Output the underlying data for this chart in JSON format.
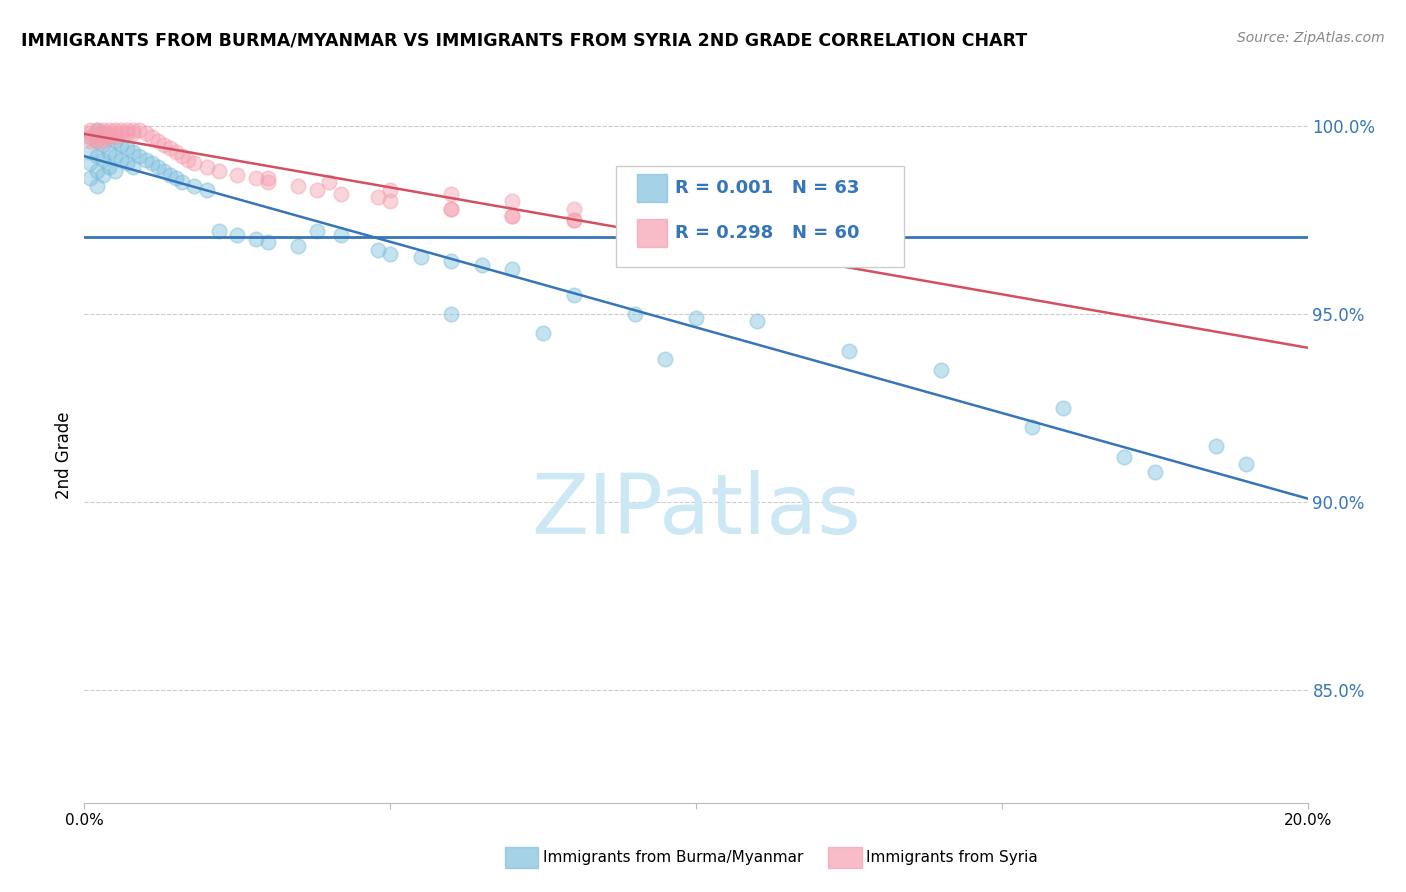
{
  "title": "IMMIGRANTS FROM BURMA/MYANMAR VS IMMIGRANTS FROM SYRIA 2ND GRADE CORRELATION CHART",
  "source": "Source: ZipAtlas.com",
  "ylabel": "2nd Grade",
  "xlim": [
    0.0,
    0.2
  ],
  "ylim": [
    0.82,
    1.005
  ],
  "yticks": [
    0.85,
    0.9,
    0.95,
    1.0
  ],
  "ytick_labels": [
    "85.0%",
    "90.0%",
    "95.0%",
    "100.0%"
  ],
  "blue_color": "#7fbfdd",
  "pink_color": "#f4a0b0",
  "trendline_blue_color": "#3575b8",
  "trendline_pink_color": "#d45060",
  "hline_color": "#3575b8",
  "legend_R_blue": "R = 0.001",
  "legend_N_blue": "N = 63",
  "legend_R_pink": "R = 0.298",
  "legend_N_pink": "N = 60",
  "legend_color": "#3575b8",
  "watermark": "ZIPatlas",
  "watermark_color": "#cde8f5",
  "grid_color": "#cccccc",
  "blue_x": [
    0.001,
    0.001,
    0.001,
    0.001,
    0.002,
    0.002,
    0.002,
    0.002,
    0.002,
    0.003,
    0.003,
    0.003,
    0.003,
    0.004,
    0.004,
    0.004,
    0.005,
    0.005,
    0.005,
    0.006,
    0.006,
    0.007,
    0.007,
    0.008,
    0.008,
    0.009,
    0.01,
    0.011,
    0.012,
    0.013,
    0.014,
    0.015,
    0.016,
    0.018,
    0.02,
    0.022,
    0.025,
    0.028,
    0.03,
    0.035,
    0.038,
    0.042,
    0.048,
    0.05,
    0.055,
    0.06,
    0.065,
    0.07,
    0.08,
    0.09,
    0.1,
    0.11,
    0.125,
    0.14,
    0.16,
    0.185,
    0.19,
    0.06,
    0.075,
    0.095,
    0.155,
    0.17,
    0.175
  ],
  "blue_y": [
    0.997,
    0.993,
    0.99,
    0.986,
    0.999,
    0.996,
    0.992,
    0.988,
    0.984,
    0.998,
    0.995,
    0.991,
    0.987,
    0.997,
    0.993,
    0.989,
    0.996,
    0.992,
    0.988,
    0.995,
    0.991,
    0.994,
    0.99,
    0.993,
    0.989,
    0.992,
    0.991,
    0.99,
    0.989,
    0.988,
    0.987,
    0.986,
    0.985,
    0.984,
    0.983,
    0.972,
    0.971,
    0.97,
    0.969,
    0.968,
    0.972,
    0.971,
    0.967,
    0.966,
    0.965,
    0.964,
    0.963,
    0.962,
    0.955,
    0.95,
    0.949,
    0.948,
    0.94,
    0.935,
    0.925,
    0.915,
    0.91,
    0.95,
    0.945,
    0.938,
    0.92,
    0.912,
    0.908
  ],
  "pink_x": [
    0.001,
    0.001,
    0.001,
    0.001,
    0.002,
    0.002,
    0.002,
    0.002,
    0.003,
    0.003,
    0.003,
    0.003,
    0.004,
    0.004,
    0.004,
    0.005,
    0.005,
    0.005,
    0.006,
    0.006,
    0.007,
    0.007,
    0.008,
    0.008,
    0.009,
    0.01,
    0.011,
    0.012,
    0.013,
    0.014,
    0.015,
    0.016,
    0.017,
    0.018,
    0.02,
    0.022,
    0.025,
    0.028,
    0.03,
    0.035,
    0.038,
    0.042,
    0.048,
    0.05,
    0.06,
    0.07,
    0.08,
    0.09,
    0.1,
    0.11,
    0.06,
    0.07,
    0.08,
    0.1,
    0.03,
    0.04,
    0.05,
    0.06,
    0.07,
    0.08
  ],
  "pink_y": [
    0.999,
    0.998,
    0.997,
    0.996,
    0.999,
    0.998,
    0.997,
    0.996,
    0.999,
    0.998,
    0.997,
    0.996,
    0.999,
    0.998,
    0.997,
    0.999,
    0.998,
    0.997,
    0.999,
    0.998,
    0.999,
    0.998,
    0.999,
    0.998,
    0.999,
    0.998,
    0.997,
    0.996,
    0.995,
    0.994,
    0.993,
    0.992,
    0.991,
    0.99,
    0.989,
    0.988,
    0.987,
    0.986,
    0.985,
    0.984,
    0.983,
    0.982,
    0.981,
    0.98,
    0.978,
    0.976,
    0.975,
    0.974,
    0.973,
    0.972,
    0.978,
    0.976,
    0.975,
    0.973,
    0.986,
    0.985,
    0.983,
    0.982,
    0.98,
    0.978
  ]
}
